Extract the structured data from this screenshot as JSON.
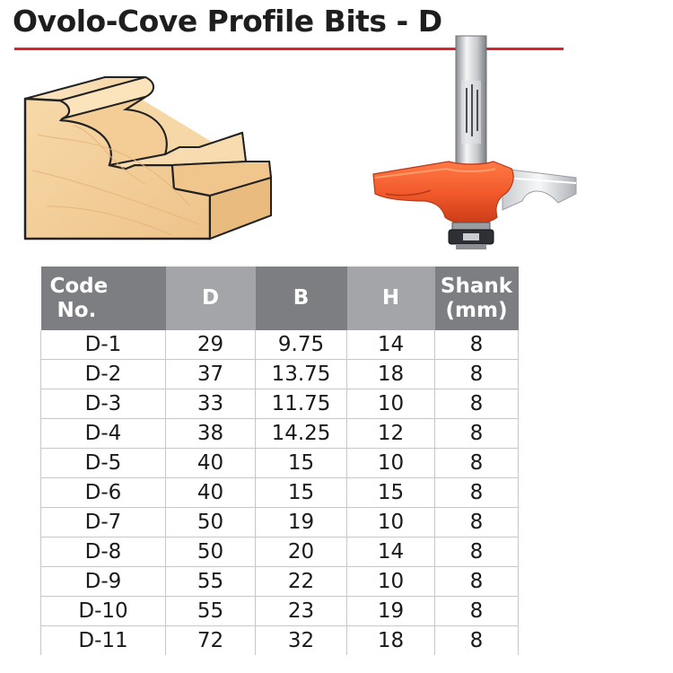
{
  "header": {
    "title": "Ovolo-Cove Profile Bits - D"
  },
  "colors": {
    "rule": "#d9242a",
    "bit_orange": "#f25a2b",
    "header_dark": "#7d7e82",
    "header_light": "#a4a5a8",
    "wood": "#f2cf9c"
  },
  "illustrations": {
    "wood_profile": "wood-molding-profile",
    "router_bit": "ovolo-cove-router-bit"
  },
  "table": {
    "columns": [
      {
        "line1": "Code",
        "line2": "No."
      },
      {
        "line1": "D",
        "line2": ""
      },
      {
        "line1": "B",
        "line2": ""
      },
      {
        "line1": "H",
        "line2": ""
      },
      {
        "line1": "Shank",
        "line2": "(mm)"
      }
    ],
    "rows": [
      [
        "D-1",
        "29",
        "9.75",
        "14",
        "8"
      ],
      [
        "D-2",
        "37",
        "13.75",
        "18",
        "8"
      ],
      [
        "D-3",
        "33",
        "11.75",
        "10",
        "8"
      ],
      [
        "D-4",
        "38",
        "14.25",
        "12",
        "8"
      ],
      [
        "D-5",
        "40",
        "15",
        "10",
        "8"
      ],
      [
        "D-6",
        "40",
        "15",
        "15",
        "8"
      ],
      [
        "D-7",
        "50",
        "19",
        "10",
        "8"
      ],
      [
        "D-8",
        "50",
        "20",
        "14",
        "8"
      ],
      [
        "D-9",
        "55",
        "22",
        "10",
        "8"
      ],
      [
        "D-10",
        "55",
        "23",
        "19",
        "8"
      ],
      [
        "D-11",
        "72",
        "32",
        "18",
        "8"
      ]
    ]
  }
}
